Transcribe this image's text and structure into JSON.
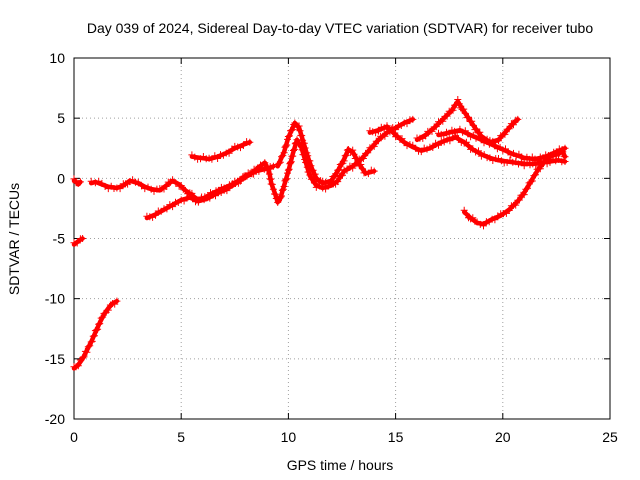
{
  "chart_data": {
    "type": "scatter",
    "title": "Day 039 of 2024, Sidereal Day-to-day VTEC variation (SDTVAR) for receiver tubo",
    "xlabel": "GPS time / hours",
    "ylabel": "SDTVAR / TECUs",
    "xlim": [
      0,
      25
    ],
    "ylim": [
      -20,
      10
    ],
    "x_ticks": [
      0,
      5,
      10,
      15,
      20,
      25
    ],
    "y_ticks": [
      -20,
      -15,
      -10,
      -5,
      0,
      5,
      10
    ],
    "grid": true,
    "marker": "+",
    "color": "#ff0000",
    "series": [
      {
        "name": "seg1",
        "points": [
          [
            0.0,
            -0.2
          ],
          [
            0.1,
            -0.3
          ],
          [
            0.2,
            -0.5
          ],
          [
            0.3,
            -0.3
          ]
        ]
      },
      {
        "name": "seg2",
        "points": [
          [
            0.0,
            -5.5
          ],
          [
            0.15,
            -5.3
          ],
          [
            0.3,
            -5.1
          ],
          [
            0.4,
            -5.0
          ]
        ]
      },
      {
        "name": "seg3",
        "points": [
          [
            0.0,
            -15.8
          ],
          [
            0.2,
            -15.5
          ],
          [
            0.4,
            -15.0
          ],
          [
            0.6,
            -14.3
          ],
          [
            0.8,
            -13.6
          ],
          [
            1.0,
            -12.8
          ],
          [
            1.2,
            -12.0
          ],
          [
            1.4,
            -11.3
          ],
          [
            1.6,
            -10.8
          ],
          [
            1.8,
            -10.4
          ],
          [
            2.0,
            -10.2
          ]
        ]
      },
      {
        "name": "seg4",
        "points": [
          [
            0.8,
            -0.4
          ],
          [
            1.0,
            -0.3
          ],
          [
            1.3,
            -0.5
          ],
          [
            1.6,
            -0.7
          ],
          [
            2.0,
            -0.8
          ],
          [
            2.3,
            -0.6
          ],
          [
            2.6,
            -0.2
          ],
          [
            3.0,
            -0.4
          ],
          [
            3.3,
            -0.7
          ],
          [
            3.6,
            -0.9
          ],
          [
            4.0,
            -1.0
          ],
          [
            4.3,
            -0.6
          ],
          [
            4.6,
            -0.2
          ],
          [
            4.9,
            -0.5
          ],
          [
            5.2,
            -1.0
          ],
          [
            5.5,
            -1.4
          ],
          [
            5.8,
            -1.8
          ],
          [
            6.1,
            -1.6
          ],
          [
            6.5,
            -1.2
          ],
          [
            7.0,
            -0.8
          ],
          [
            7.5,
            -0.4
          ],
          [
            8.0,
            0.2
          ],
          [
            8.5,
            0.6
          ],
          [
            9.0,
            0.8
          ],
          [
            9.3,
            1.0
          ]
        ]
      },
      {
        "name": "seg5",
        "points": [
          [
            3.4,
            -3.3
          ],
          [
            3.8,
            -3.0
          ],
          [
            4.2,
            -2.6
          ],
          [
            4.6,
            -2.2
          ],
          [
            5.0,
            -1.8
          ],
          [
            5.4,
            -1.6
          ],
          [
            5.8,
            -1.9
          ],
          [
            6.2,
            -1.7
          ],
          [
            6.6,
            -1.3
          ],
          [
            7.0,
            -1.0
          ],
          [
            7.4,
            -0.6
          ],
          [
            7.8,
            -0.1
          ],
          [
            8.2,
            0.3
          ],
          [
            8.6,
            0.9
          ],
          [
            8.9,
            1.3
          ],
          [
            9.1,
            0.6
          ],
          [
            9.2,
            -0.4
          ],
          [
            9.4,
            -1.4
          ],
          [
            9.5,
            -2.0
          ]
        ]
      },
      {
        "name": "seg6",
        "points": [
          [
            5.5,
            1.8
          ],
          [
            5.9,
            1.7
          ],
          [
            6.3,
            1.6
          ],
          [
            6.7,
            1.8
          ],
          [
            7.1,
            2.1
          ],
          [
            7.5,
            2.5
          ],
          [
            7.9,
            2.8
          ],
          [
            8.2,
            3.0
          ]
        ]
      },
      {
        "name": "seg7",
        "points": [
          [
            9.5,
            1.0
          ],
          [
            9.8,
            2.2
          ],
          [
            10.0,
            3.4
          ],
          [
            10.2,
            4.2
          ],
          [
            10.3,
            4.6
          ],
          [
            10.5,
            4.2
          ],
          [
            10.7,
            3.0
          ],
          [
            10.9,
            1.8
          ],
          [
            11.1,
            0.8
          ],
          [
            11.3,
            0.0
          ],
          [
            11.6,
            -0.4
          ],
          [
            12.0,
            -0.2
          ],
          [
            12.3,
            0.6
          ],
          [
            12.6,
            1.6
          ],
          [
            12.8,
            2.4
          ],
          [
            13.0,
            2.2
          ],
          [
            13.3,
            1.2
          ],
          [
            13.6,
            0.4
          ],
          [
            14.0,
            0.6
          ]
        ]
      },
      {
        "name": "seg8",
        "points": [
          [
            9.6,
            -1.8
          ],
          [
            9.8,
            -0.6
          ],
          [
            10.0,
            0.6
          ],
          [
            10.2,
            2.0
          ],
          [
            10.4,
            3.2
          ],
          [
            10.6,
            2.6
          ],
          [
            10.8,
            1.4
          ],
          [
            11.0,
            0.2
          ],
          [
            11.3,
            -0.6
          ],
          [
            11.6,
            -0.8
          ],
          [
            12.0,
            -0.6
          ],
          [
            12.3,
            -0.2
          ],
          [
            12.6,
            0.6
          ],
          [
            13.0,
            1.0
          ],
          [
            13.4,
            1.6
          ],
          [
            13.8,
            2.4
          ],
          [
            14.2,
            3.2
          ],
          [
            14.6,
            3.8
          ],
          [
            15.0,
            4.2
          ],
          [
            15.4,
            4.6
          ],
          [
            15.8,
            4.9
          ]
        ]
      },
      {
        "name": "seg9",
        "points": [
          [
            13.8,
            3.8
          ],
          [
            14.2,
            4.0
          ],
          [
            14.6,
            4.3
          ],
          [
            15.0,
            3.6
          ],
          [
            15.4,
            3.0
          ],
          [
            15.8,
            2.6
          ],
          [
            16.2,
            2.3
          ],
          [
            16.6,
            2.5
          ],
          [
            17.0,
            2.9
          ],
          [
            17.4,
            3.2
          ],
          [
            17.8,
            3.4
          ],
          [
            18.2,
            3.0
          ],
          [
            18.6,
            2.4
          ],
          [
            19.0,
            2.0
          ],
          [
            19.4,
            1.7
          ],
          [
            19.8,
            1.5
          ],
          [
            20.2,
            1.4
          ],
          [
            20.6,
            1.3
          ],
          [
            21.0,
            1.2
          ],
          [
            21.4,
            1.2
          ],
          [
            21.8,
            1.3
          ],
          [
            22.2,
            1.4
          ],
          [
            22.6,
            1.5
          ],
          [
            22.9,
            1.4
          ]
        ]
      },
      {
        "name": "seg10",
        "points": [
          [
            16.0,
            3.2
          ],
          [
            16.4,
            3.6
          ],
          [
            16.8,
            4.2
          ],
          [
            17.2,
            4.9
          ],
          [
            17.6,
            5.6
          ],
          [
            17.9,
            6.4
          ],
          [
            18.1,
            5.8
          ],
          [
            18.4,
            5.0
          ],
          [
            18.7,
            4.2
          ],
          [
            19.0,
            3.5
          ],
          [
            19.4,
            3.0
          ],
          [
            19.8,
            3.2
          ],
          [
            20.2,
            4.0
          ],
          [
            20.5,
            4.6
          ],
          [
            20.7,
            4.9
          ]
        ]
      },
      {
        "name": "seg11",
        "points": [
          [
            17.0,
            3.6
          ],
          [
            17.5,
            3.8
          ],
          [
            18.0,
            4.0
          ],
          [
            18.5,
            3.6
          ],
          [
            19.0,
            3.2
          ],
          [
            19.5,
            2.8
          ],
          [
            20.0,
            2.4
          ],
          [
            20.5,
            2.0
          ],
          [
            21.0,
            1.7
          ],
          [
            21.5,
            1.6
          ],
          [
            22.0,
            1.8
          ],
          [
            22.5,
            2.2
          ],
          [
            22.9,
            2.5
          ]
        ]
      },
      {
        "name": "seg12",
        "points": [
          [
            18.2,
            -2.8
          ],
          [
            18.5,
            -3.3
          ],
          [
            18.8,
            -3.7
          ],
          [
            19.1,
            -3.8
          ],
          [
            19.5,
            -3.4
          ],
          [
            19.9,
            -3.1
          ],
          [
            20.3,
            -2.6
          ],
          [
            20.7,
            -1.9
          ],
          [
            21.0,
            -1.2
          ],
          [
            21.3,
            -0.3
          ],
          [
            21.6,
            0.6
          ],
          [
            21.9,
            1.3
          ],
          [
            22.2,
            1.8
          ],
          [
            22.5,
            2.0
          ],
          [
            22.8,
            2.2
          ],
          [
            22.9,
            1.8
          ]
        ]
      }
    ]
  }
}
